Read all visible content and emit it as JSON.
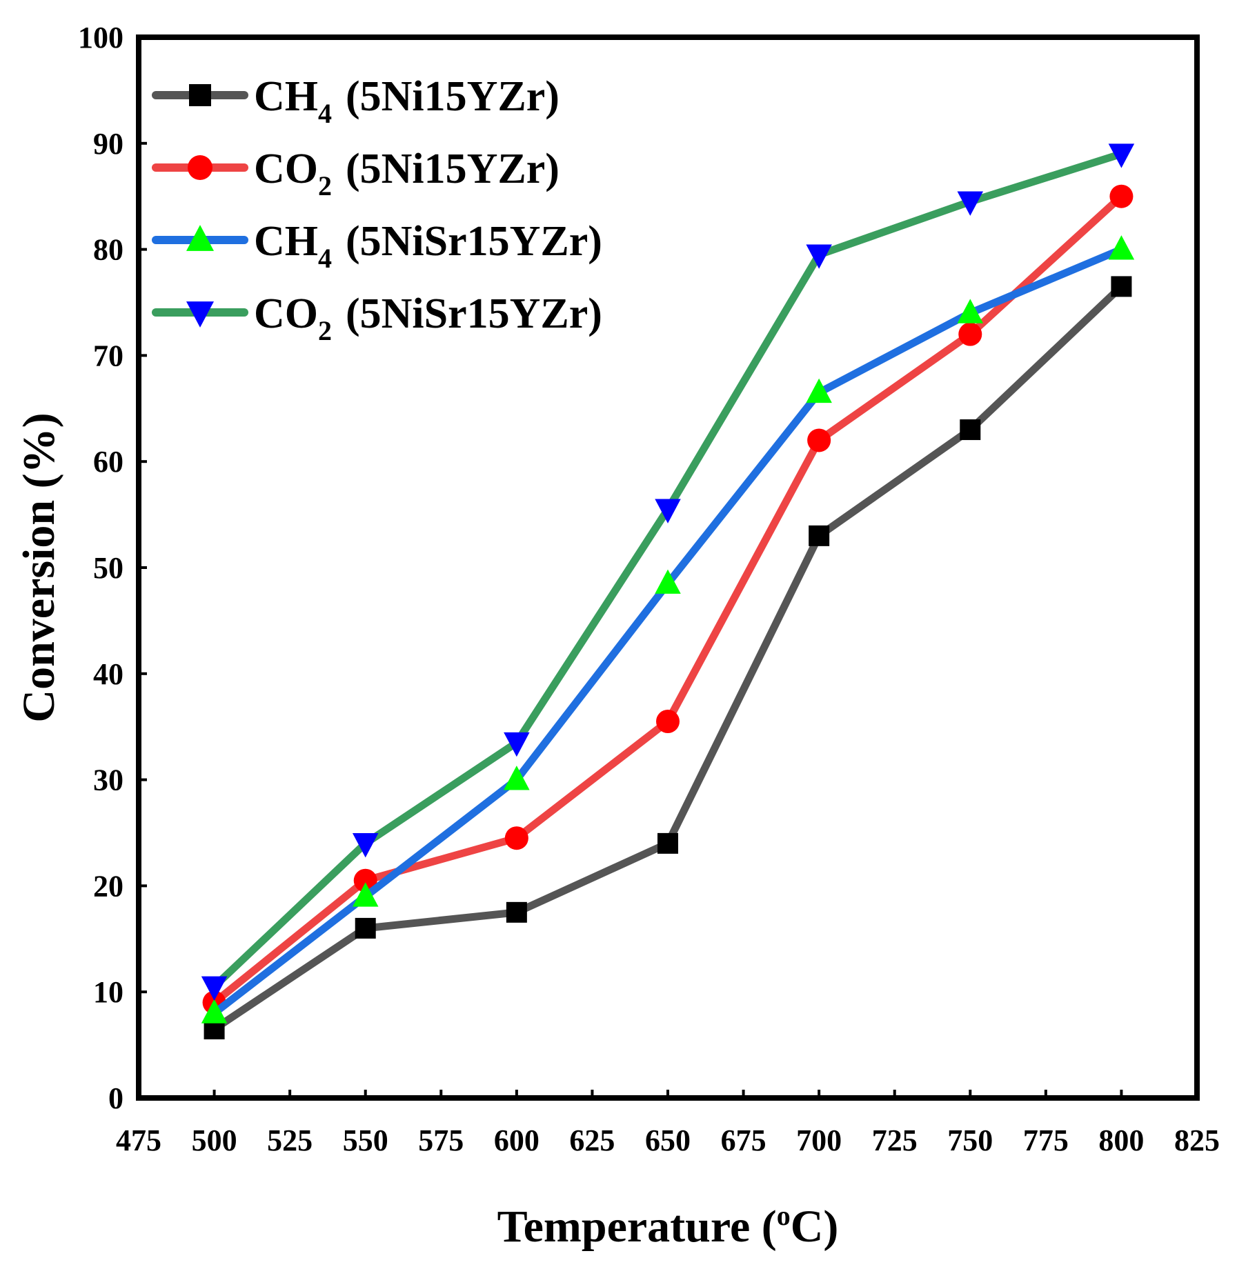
{
  "chart_data": {
    "type": "line",
    "xlabel": "Temperature (°C)",
    "ylabel": "Conversion (%)",
    "xlim": [
      475,
      825
    ],
    "ylim": [
      0,
      100
    ],
    "xticks": [
      "475",
      "500",
      "525",
      "550",
      "575",
      "600",
      "625",
      "650",
      "675",
      "700",
      "725",
      "750",
      "775",
      "800",
      "825"
    ],
    "yticks": [
      "0",
      "10",
      "20",
      "30",
      "40",
      "50",
      "60",
      "70",
      "80",
      "90",
      "100"
    ],
    "grid": false,
    "legend_position": "top-left",
    "x": [
      500,
      550,
      600,
      650,
      700,
      750,
      800
    ],
    "series": [
      {
        "label_main": "CH",
        "label_sub": "4",
        "label_rest": "(5Ni15YZr)",
        "marker": "square",
        "line_color": "#555555",
        "marker_color": "#000000",
        "values": [
          6.5,
          16.0,
          17.5,
          24.0,
          53.0,
          63.0,
          76.5
        ]
      },
      {
        "label_main": "CO",
        "label_sub": "2",
        "label_rest": "(5Ni15YZr)",
        "marker": "circle",
        "line_color": "#ee4444",
        "marker_color": "#ff0000",
        "values": [
          9.0,
          20.5,
          24.5,
          35.5,
          62.0,
          72.0,
          85.0
        ]
      },
      {
        "label_main": "CH",
        "label_sub": "4",
        "label_rest": "(5NiSr15YZr)",
        "marker": "triangle-up",
        "line_color": "#1f6fe0",
        "marker_color": "#00ff00",
        "values": [
          8.0,
          19.0,
          30.0,
          48.5,
          66.5,
          74.0,
          80.0
        ]
      },
      {
        "label_main": "CO",
        "label_sub": "2",
        "label_rest": "(5NiSr15YZr)",
        "marker": "triangle-down",
        "line_color": "#3a9e5e",
        "marker_color": "#0000ff",
        "values": [
          10.5,
          24.0,
          33.5,
          55.5,
          79.5,
          84.5,
          89.0
        ]
      }
    ]
  }
}
